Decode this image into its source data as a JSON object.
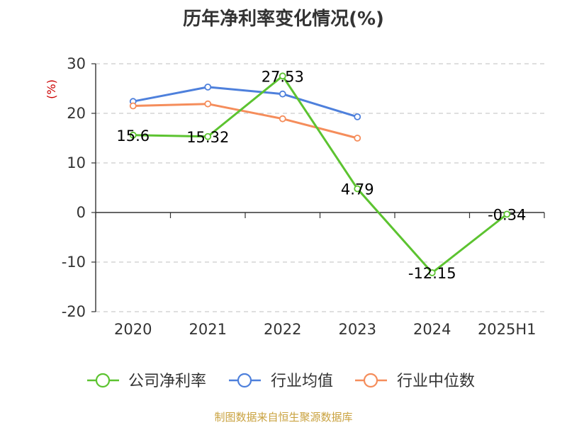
{
  "chart_data": {
    "type": "line",
    "title": "历年净利率变化情况(%)",
    "ylabel": "(%)",
    "xlabel": "",
    "categories": [
      "2020",
      "2021",
      "2022",
      "2023",
      "2024",
      "2025H1"
    ],
    "ylim": [
      -20,
      30
    ],
    "yticks": [
      30,
      20,
      10,
      0,
      -10,
      -20
    ],
    "grid": true,
    "legend_position": "bottom",
    "series": [
      {
        "name": "公司净利率",
        "color": "#5cc330",
        "values": [
          15.6,
          15.32,
          27.53,
          4.79,
          -12.15,
          -0.34
        ],
        "labels": [
          "15.6",
          "15.32",
          "27.53",
          "4.79",
          "-12.15",
          "-0.34"
        ]
      },
      {
        "name": "行业均值",
        "color": "#4e80dc",
        "values": [
          22.4,
          25.3,
          23.9,
          19.3,
          null,
          null
        ]
      },
      {
        "name": "行业中位数",
        "color": "#f58d5b",
        "values": [
          21.5,
          21.9,
          18.9,
          15.0,
          null,
          null
        ]
      }
    ]
  },
  "source": "制图数据来自恒生聚源数据库"
}
